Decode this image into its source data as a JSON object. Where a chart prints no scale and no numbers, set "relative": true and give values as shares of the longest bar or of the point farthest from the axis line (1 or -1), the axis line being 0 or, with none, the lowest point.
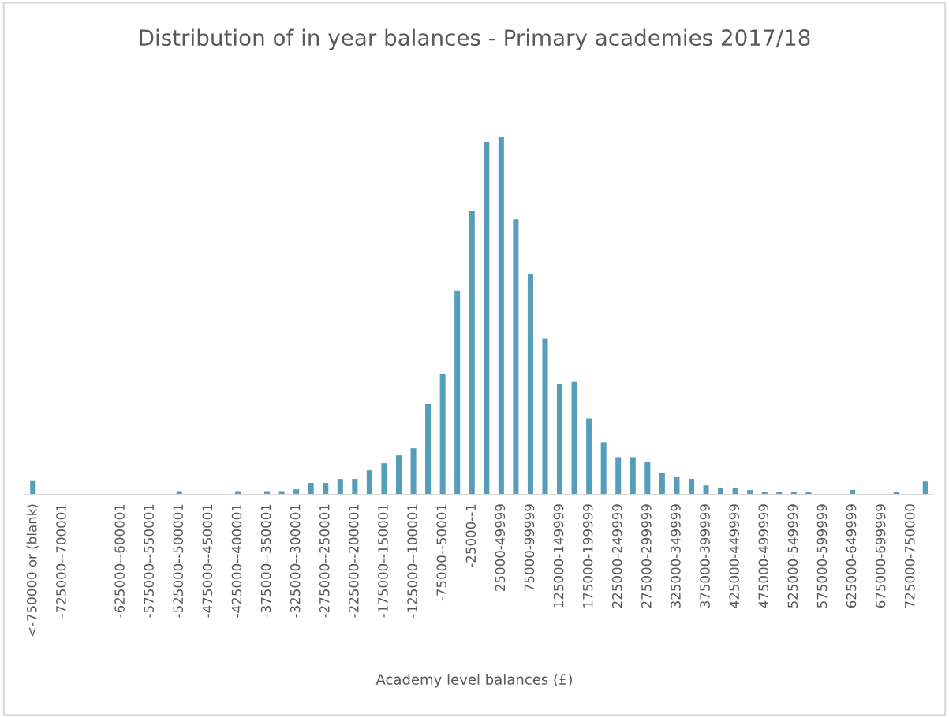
{
  "chart_data": {
    "type": "bar",
    "title": "Distribution of in year balances - Primary academies 2017/18",
    "xlabel": "Academy level balances (£)",
    "relative": true,
    "color": "#559ebb",
    "grid": false,
    "legend": false,
    "categories": [
      "<-750000 or (blank)",
      null,
      "-725000--700001",
      null,
      null,
      null,
      "-625000--600001",
      null,
      "-575000--550001",
      null,
      "-525000--500001",
      null,
      "-475000--450001",
      null,
      "-425000--400001",
      null,
      "-375000--350001",
      null,
      "-325000--300001",
      null,
      "-275000--250001",
      null,
      "-225000--200001",
      null,
      "-175000--150001",
      null,
      "-125000--100001",
      null,
      "-75000--50001",
      null,
      "-25000--1",
      null,
      "25000-49999",
      null,
      "75000-99999",
      null,
      "125000-149999",
      null,
      "175000-199999",
      null,
      "225000-249999",
      null,
      "275000-299999",
      null,
      "325000-349999",
      null,
      "375000-399999",
      null,
      "425000-449999",
      null,
      "475000-499999",
      null,
      "525000-549999",
      null,
      "575000-599999",
      null,
      "625000-649999",
      null,
      "675000-699999",
      null,
      "725000-750000",
      null
    ],
    "values": [
      0.04,
      0,
      0,
      0,
      null,
      0,
      0,
      0,
      0,
      0,
      0.01,
      0,
      0,
      0,
      0.01,
      0,
      0.01,
      0.01,
      0.015,
      0.033,
      0.033,
      0.044,
      0.044,
      0.068,
      0.088,
      0.11,
      0.13,
      0.254,
      0.338,
      0.57,
      0.794,
      0.987,
      1,
      0.77,
      0.618,
      0.436,
      0.309,
      0.316,
      0.213,
      0.147,
      0.105,
      0.105,
      0.092,
      0.061,
      0.05,
      0.044,
      0.026,
      0.02,
      0.02,
      0.013,
      0.007,
      0.007,
      0.007,
      0.007,
      0,
      0,
      0.013,
      0,
      0,
      0.007,
      0,
      0.037
    ]
  }
}
